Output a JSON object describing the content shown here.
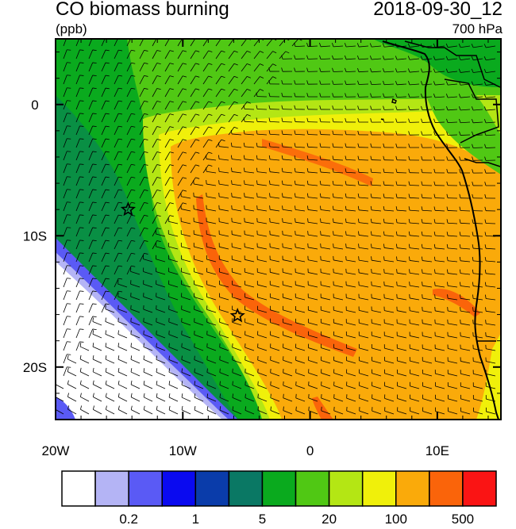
{
  "title": {
    "left": "CO biomass burning",
    "right": "2018-09-30_12"
  },
  "subtitle": {
    "left": "(ppb)",
    "right": "700 hPa"
  },
  "axes": {
    "x": {
      "range": [
        -20,
        15
      ],
      "ticks": [
        {
          "value": -20,
          "label": "20W"
        },
        {
          "value": -10,
          "label": "10W"
        },
        {
          "value": 0,
          "label": "0"
        },
        {
          "value": 10,
          "label": "10E"
        }
      ]
    },
    "y": {
      "range": [
        -24,
        5
      ],
      "ticks": [
        {
          "value": 0,
          "label": "0"
        },
        {
          "value": -10,
          "label": "10S"
        },
        {
          "value": -20,
          "label": "20S"
        }
      ]
    }
  },
  "markers": [
    {
      "name": "star-marker-1",
      "lon": -14.3,
      "lat": -8.0
    },
    {
      "name": "star-marker-2",
      "lon": -5.7,
      "lat": -16.1
    }
  ],
  "colorbar": {
    "colors": [
      "#ffffff",
      "#b4b4f5",
      "#5a5af5",
      "#0a0af0",
      "#0a3caa",
      "#0a7864",
      "#0aaa1e",
      "#50c814",
      "#b4e614",
      "#f0f00a",
      "#faaa0a",
      "#fa640a",
      "#fa1414"
    ],
    "labels": [
      {
        "after_index": 1,
        "text": "0.2"
      },
      {
        "after_index": 3,
        "text": "1"
      },
      {
        "after_index": 5,
        "text": "5"
      },
      {
        "after_index": 7,
        "text": "20"
      },
      {
        "after_index": 9,
        "text": "100"
      },
      {
        "after_index": 11,
        "text": "500"
      }
    ]
  },
  "field_colors": {
    "white": "#ffffff",
    "lavender": "#b4b4f5",
    "blue": "#5a5af5",
    "teal": "#0a7864",
    "green": "#0aaa1e",
    "lightgreen": "#50c814",
    "yellowgreen": "#b4e614",
    "yellow": "#f0f00a",
    "orange": "#faaa0a",
    "darkorange": "#fa640a",
    "red": "#fa1414"
  }
}
